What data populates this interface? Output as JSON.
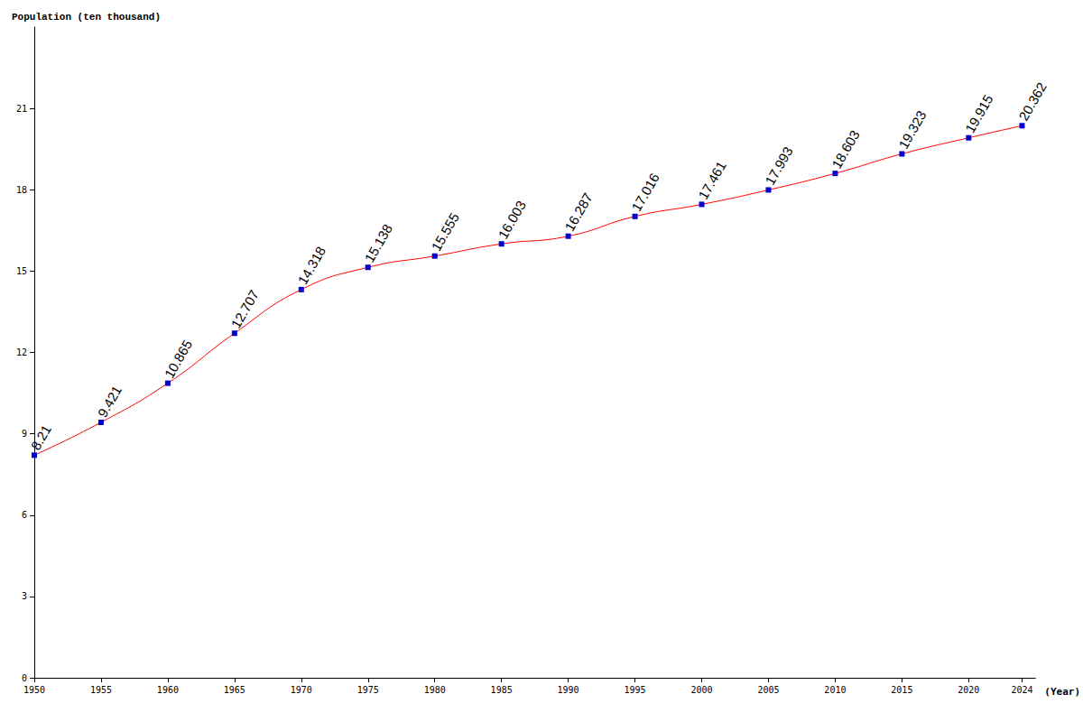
{
  "chart_data": {
    "type": "line",
    "title": "Population (ten thousand)",
    "x_label": "(Year)",
    "x": [
      1950,
      1955,
      1960,
      1965,
      1970,
      1975,
      1980,
      1985,
      1990,
      1995,
      2000,
      2005,
      2010,
      2015,
      2020,
      2024
    ],
    "values": [
      8.21,
      9.421,
      10.865,
      12.707,
      14.318,
      15.138,
      15.555,
      16.003,
      16.287,
      17.016,
      17.461,
      17.993,
      18.603,
      19.323,
      19.915,
      20.362
    ],
    "color": "#ff0000",
    "marker": "square",
    "xlim": [
      1950,
      2025
    ],
    "xticks": [
      1950,
      1955,
      1960,
      1965,
      1970,
      1975,
      1980,
      1985,
      1990,
      1995,
      2000,
      2005,
      2010,
      2015,
      2020,
      2024
    ],
    "ylim": [
      0,
      24
    ],
    "yticks": [
      0,
      3,
      6,
      9,
      12,
      15,
      18,
      21
    ],
    "grid": false,
    "data_labels": true
  }
}
